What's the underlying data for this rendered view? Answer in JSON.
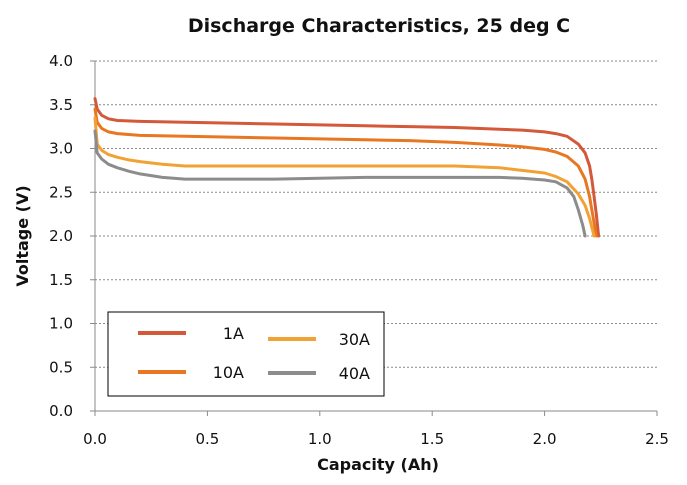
{
  "chart_data": {
    "type": "line",
    "title": "Discharge Characteristics, 25 deg C",
    "xlabel": "Capacity (Ah)",
    "ylabel": "Voltage (V)",
    "xlim": [
      0,
      2.5
    ],
    "ylim": [
      0,
      4.0
    ],
    "xticks": [
      "0.0",
      "0.5",
      "1.0",
      "1.5",
      "2.0",
      "2.5"
    ],
    "yticks": [
      "0.0",
      "0.5",
      "1.0",
      "1.5",
      "2.0",
      "2.5",
      "3.0",
      "3.5",
      "4.0"
    ],
    "grid": "horizontal dotted",
    "legend_position": "bottom-left",
    "series": [
      {
        "name": "1A",
        "color": "#D4583A",
        "x": [
          0.0,
          0.01,
          0.03,
          0.06,
          0.1,
          0.2,
          0.4,
          0.6,
          0.8,
          1.0,
          1.2,
          1.4,
          1.6,
          1.8,
          1.9,
          2.0,
          2.05,
          2.1,
          2.15,
          2.18,
          2.2,
          2.21,
          2.22,
          2.23,
          2.24
        ],
        "y": [
          3.57,
          3.45,
          3.38,
          3.34,
          3.32,
          3.31,
          3.3,
          3.29,
          3.28,
          3.27,
          3.26,
          3.25,
          3.24,
          3.22,
          3.21,
          3.19,
          3.17,
          3.14,
          3.05,
          2.95,
          2.8,
          2.65,
          2.45,
          2.25,
          2.0
        ]
      },
      {
        "name": "10A",
        "color": "#E87722",
        "x": [
          0.0,
          0.01,
          0.03,
          0.06,
          0.1,
          0.2,
          0.4,
          0.6,
          0.8,
          1.0,
          1.2,
          1.4,
          1.6,
          1.8,
          1.9,
          2.0,
          2.05,
          2.1,
          2.15,
          2.18,
          2.2,
          2.21,
          2.22,
          2.23
        ],
        "y": [
          3.45,
          3.3,
          3.23,
          3.19,
          3.17,
          3.15,
          3.14,
          3.13,
          3.12,
          3.11,
          3.1,
          3.09,
          3.07,
          3.04,
          3.02,
          2.99,
          2.96,
          2.91,
          2.8,
          2.65,
          2.45,
          2.3,
          2.15,
          2.0
        ]
      },
      {
        "name": "30A",
        "color": "#F2A234",
        "x": [
          0.0,
          0.01,
          0.03,
          0.06,
          0.1,
          0.15,
          0.2,
          0.3,
          0.4,
          0.6,
          0.8,
          1.0,
          1.2,
          1.4,
          1.6,
          1.8,
          1.9,
          2.0,
          2.05,
          2.1,
          2.15,
          2.18,
          2.2,
          2.21,
          2.22
        ],
        "y": [
          3.35,
          3.05,
          2.98,
          2.93,
          2.9,
          2.87,
          2.85,
          2.82,
          2.8,
          2.8,
          2.8,
          2.8,
          2.8,
          2.8,
          2.8,
          2.78,
          2.75,
          2.72,
          2.68,
          2.62,
          2.48,
          2.35,
          2.2,
          2.1,
          2.0
        ]
      },
      {
        "name": "40A",
        "color": "#8C8C8C",
        "x": [
          0.0,
          0.01,
          0.03,
          0.06,
          0.1,
          0.15,
          0.2,
          0.3,
          0.4,
          0.6,
          0.8,
          1.0,
          1.2,
          1.4,
          1.6,
          1.8,
          1.9,
          2.0,
          2.05,
          2.1,
          2.13,
          2.15,
          2.17,
          2.18
        ],
        "y": [
          3.2,
          2.95,
          2.88,
          2.82,
          2.78,
          2.74,
          2.71,
          2.67,
          2.65,
          2.65,
          2.65,
          2.66,
          2.67,
          2.67,
          2.67,
          2.67,
          2.66,
          2.64,
          2.62,
          2.55,
          2.45,
          2.3,
          2.12,
          2.0
        ]
      }
    ]
  }
}
